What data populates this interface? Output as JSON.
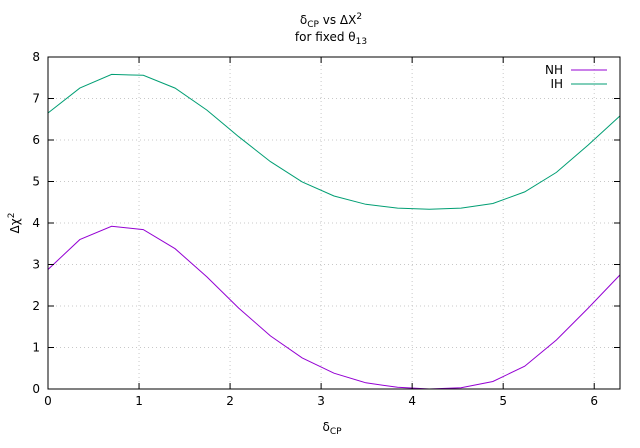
{
  "chart_data": {
    "type": "line",
    "title_lines": [
      {
        "base": "δ",
        "sub": "CP",
        "rest": " vs ΔX",
        "sup": "2"
      },
      {
        "base": "for fixed θ",
        "sub": "13",
        "rest": "",
        "sup": ""
      }
    ],
    "xlabel": {
      "base": "δ",
      "sub": "CP"
    },
    "ylabel": {
      "base": "Δχ",
      "sup": "2"
    },
    "xlim": [
      0,
      6.2832
    ],
    "ylim": [
      0,
      8
    ],
    "x_ticks": [
      0,
      1,
      2,
      3,
      4,
      5,
      6
    ],
    "y_ticks": [
      0,
      1,
      2,
      3,
      4,
      5,
      6,
      7,
      8
    ],
    "grid": true,
    "legend_position": "top-right",
    "series": [
      {
        "name": "NH",
        "color": "#9400d3",
        "x": [
          0,
          0.3491,
          0.6981,
          1.0472,
          1.3963,
          1.7453,
          2.0944,
          2.4435,
          2.7925,
          3.1416,
          3.4907,
          3.8397,
          4.1888,
          4.5379,
          4.8869,
          5.236,
          5.5851,
          5.9341,
          6.2832
        ],
        "values": [
          2.88,
          3.6,
          3.92,
          3.84,
          3.38,
          2.7,
          1.95,
          1.28,
          0.75,
          0.38,
          0.15,
          0.04,
          0.0,
          0.03,
          0.18,
          0.55,
          1.18,
          1.95,
          2.75
        ]
      },
      {
        "name": "IH",
        "color": "#009e73",
        "x": [
          0,
          0.3491,
          0.6981,
          1.0472,
          1.3963,
          1.7453,
          2.0944,
          2.4435,
          2.7925,
          3.1416,
          3.4907,
          3.8397,
          4.1888,
          4.5379,
          4.8869,
          5.236,
          5.5851,
          5.9341,
          6.2832
        ],
        "values": [
          6.65,
          7.25,
          7.58,
          7.56,
          7.25,
          6.72,
          6.08,
          5.48,
          4.99,
          4.65,
          4.45,
          4.36,
          4.33,
          4.36,
          4.47,
          4.75,
          5.22,
          5.88,
          6.58
        ]
      }
    ]
  }
}
